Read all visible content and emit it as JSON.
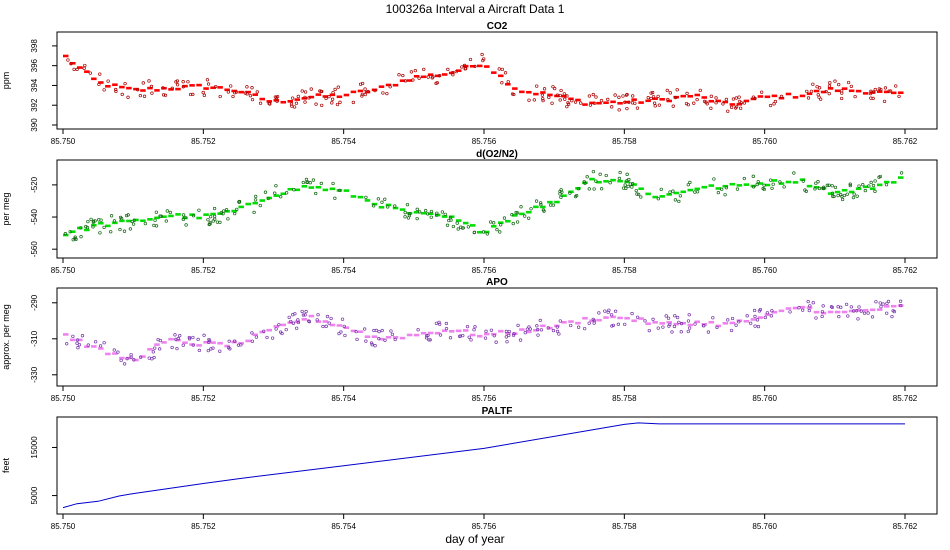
{
  "page_title": "100326a   Interval a Aircraft Data 1",
  "xlabel": "day of year",
  "x_ticks": [
    "85.750",
    "85.752",
    "85.754",
    "85.756",
    "85.758",
    "85.760",
    "85.762"
  ],
  "colors": {
    "co2": "#ff0000",
    "o2n2": "#00dd00",
    "apo": "#ee82ee",
    "paltf": "#0000cc"
  },
  "chart_data": [
    {
      "type": "scatter",
      "title": "CO2",
      "ylabel": "ppm",
      "xlim": [
        85.75,
        85.762
      ],
      "ylim": [
        390,
        399
      ],
      "y_ticks": [
        "390",
        "392",
        "394",
        "396",
        "398"
      ],
      "x": [
        85.75,
        85.7505,
        85.751,
        85.7515,
        85.752,
        85.7525,
        85.753,
        85.7535,
        85.754,
        85.7545,
        85.755,
        85.7555,
        85.756,
        85.7565,
        85.757,
        85.7575,
        85.758,
        85.7585,
        85.759,
        85.7595,
        85.76,
        85.7605,
        85.761,
        85.7615,
        85.762
      ],
      "y": [
        397.2,
        394.3,
        393.5,
        393.7,
        393.9,
        393.5,
        392.3,
        392.8,
        393.0,
        393.6,
        394.8,
        395.2,
        396.3,
        393.5,
        393.0,
        392.2,
        392.3,
        392.5,
        393.0,
        392.0,
        392.8,
        393.0,
        393.6,
        393.4,
        393.0
      ]
    },
    {
      "type": "scatter",
      "title": "d(O2/N2)",
      "ylabel": "per meg",
      "xlim": [
        85.75,
        85.762
      ],
      "ylim": [
        -563,
        -507
      ],
      "y_ticks": [
        "-520",
        "-540",
        "-560"
      ],
      "x": [
        85.75,
        85.7505,
        85.751,
        85.7515,
        85.752,
        85.7525,
        85.753,
        85.7535,
        85.754,
        85.7545,
        85.755,
        85.7555,
        85.756,
        85.7565,
        85.757,
        85.7575,
        85.758,
        85.7585,
        85.759,
        85.7595,
        85.76,
        85.7605,
        85.761,
        85.7615,
        85.762
      ],
      "y": [
        -551,
        -545,
        -543,
        -539,
        -540,
        -536,
        -526,
        -521,
        -524,
        -532,
        -538,
        -540,
        -549,
        -538,
        -531,
        -517,
        -517,
        -528,
        -522,
        -521,
        -519,
        -517,
        -525,
        -522,
        -515
      ]
    },
    {
      "type": "scatter",
      "title": "APO",
      "ylabel": "approx. per meg",
      "xlim": [
        85.75,
        85.762
      ],
      "ylim": [
        -334,
        -284
      ],
      "y_ticks": [
        "-290",
        "-310",
        "-330"
      ],
      "x": [
        85.75,
        85.7505,
        85.751,
        85.7515,
        85.752,
        85.7525,
        85.753,
        85.7535,
        85.754,
        85.7545,
        85.755,
        85.7555,
        85.756,
        85.7565,
        85.757,
        85.7575,
        85.758,
        85.7585,
        85.759,
        85.7595,
        85.76,
        85.7605,
        85.761,
        85.7615,
        85.762
      ],
      "y": [
        -307,
        -316,
        -322,
        -311,
        -313,
        -313,
        -305,
        -298,
        -303,
        -310,
        -308,
        -305,
        -308,
        -306,
        -303,
        -299,
        -298,
        -302,
        -301,
        -302,
        -298,
        -292,
        -296,
        -294,
        -292
      ]
    },
    {
      "type": "line",
      "title": "PALTF",
      "ylabel": "feet",
      "xlim": [
        85.75,
        85.762
      ],
      "ylim": [
        2000,
        20500
      ],
      "y_ticks": [
        "5000",
        "15000"
      ],
      "x": [
        85.75,
        85.7502,
        85.7505,
        85.7508,
        85.751,
        85.752,
        85.7525,
        85.754,
        85.756,
        85.758,
        85.7582,
        85.7585,
        85.762
      ],
      "y": [
        2500,
        3300,
        3800,
        4900,
        5400,
        7500,
        8500,
        11200,
        14800,
        19800,
        20100,
        19900,
        19900
      ]
    }
  ]
}
